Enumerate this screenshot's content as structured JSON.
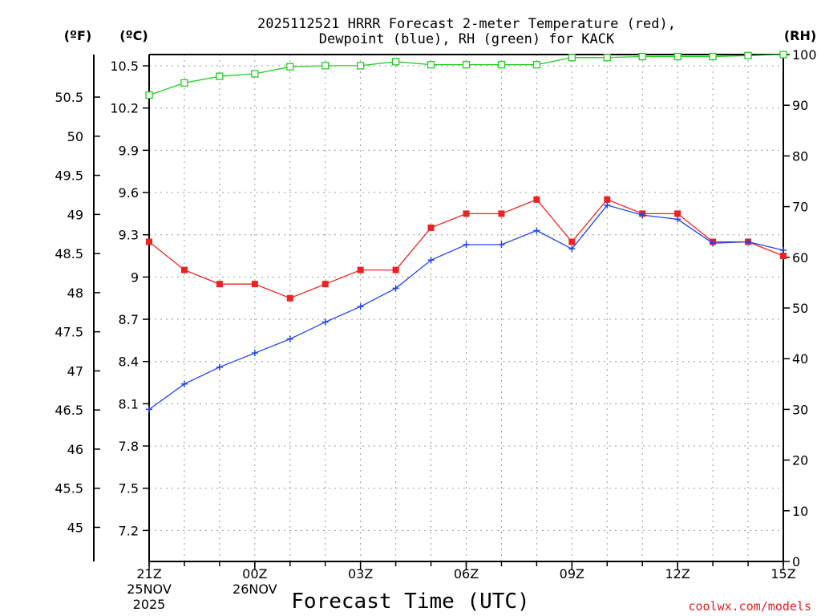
{
  "chart_data": {
    "type": "line",
    "title_line1": "2025112521 HRRR Forecast 2-meter Temperature (red),",
    "title_line2": "Dewpoint (blue), RH (green) for KACK",
    "xlabel": "Forecast Time (UTC)",
    "credit": "coolwx.com/models",
    "units": {
      "fahrenheit": "(ºF)",
      "celsius": "(ºC)",
      "rh": "(RH)"
    },
    "x_hours": [
      0,
      1,
      2,
      3,
      4,
      5,
      6,
      7,
      8,
      9,
      10,
      11,
      12,
      13,
      14,
      15,
      16,
      17,
      18
    ],
    "x_ticks": [
      {
        "hour": 0,
        "line1": "21Z",
        "line2": "25NOV",
        "line3": "2025"
      },
      {
        "hour": 3,
        "line1": "00Z",
        "line2": "26NOV",
        "line3": ""
      },
      {
        "hour": 6,
        "line1": "03Z",
        "line2": "",
        "line3": ""
      },
      {
        "hour": 9,
        "line1": "06Z",
        "line2": "",
        "line3": ""
      },
      {
        "hour": 12,
        "line1": "09Z",
        "line2": "",
        "line3": ""
      },
      {
        "hour": 15,
        "line1": "12Z",
        "line2": "",
        "line3": ""
      },
      {
        "hour": 18,
        "line1": "15Z",
        "line2": "",
        "line3": ""
      }
    ],
    "xlim": [
      0,
      18
    ],
    "ylim_c": [
      6.98,
      10.58
    ],
    "y_ticks_c": [
      "7.2",
      "7.5",
      "7.8",
      "8.1",
      "8.4",
      "8.7",
      "9",
      "9.3",
      "9.6",
      "9.9",
      "10.2",
      "10.5"
    ],
    "y_ticks_f": [
      "45",
      "45.5",
      "46",
      "46.5",
      "47",
      "47.5",
      "48",
      "48.5",
      "49",
      "49.5",
      "50",
      "50.5"
    ],
    "ylim_rh": [
      0,
      100
    ],
    "y_ticks_rh": [
      "0",
      "10",
      "20",
      "30",
      "40",
      "50",
      "60",
      "70",
      "80",
      "90",
      "100"
    ],
    "grid": true,
    "series": [
      {
        "name": "Temperature",
        "unit": "C",
        "color": "#ee2222",
        "marker": "filled-square",
        "values": [
          9.25,
          9.05,
          8.95,
          8.95,
          8.85,
          8.95,
          9.05,
          9.05,
          9.35,
          9.45,
          9.45,
          9.55,
          9.25,
          9.55,
          9.45,
          9.45,
          9.25,
          9.25,
          9.15
        ]
      },
      {
        "name": "Dewpoint",
        "unit": "C",
        "color": "#2244ee",
        "marker": "plus",
        "values": [
          8.06,
          8.24,
          8.36,
          8.46,
          8.56,
          8.68,
          8.79,
          8.92,
          9.12,
          9.23,
          9.23,
          9.33,
          9.2,
          9.51,
          9.44,
          9.41,
          9.24,
          9.25,
          9.19
        ]
      },
      {
        "name": "RH",
        "unit": "%",
        "color": "#22cc22",
        "marker": "open-square",
        "values": [
          92.0,
          94.4,
          95.7,
          96.2,
          97.6,
          97.8,
          97.8,
          98.6,
          98.0,
          98.0,
          98.0,
          98.0,
          99.4,
          99.4,
          99.6,
          99.6,
          99.6,
          99.8,
          100.0
        ]
      }
    ]
  }
}
